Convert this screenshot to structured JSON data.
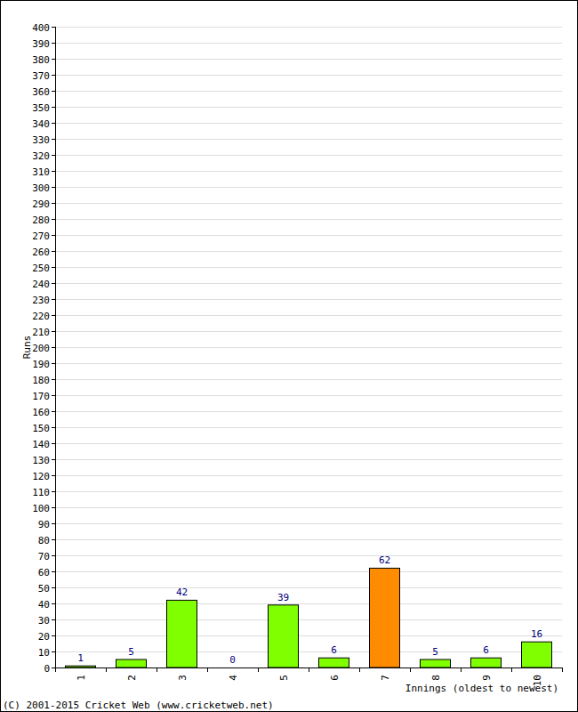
{
  "chart_data": {
    "type": "bar",
    "y_label": "Runs",
    "x_label": "Innings (oldest to newest)",
    "annotations": [
      "(C) 2001-2015 Cricket Web (www.cricketweb.net)"
    ],
    "categories": [
      "1",
      "2",
      "3",
      "4",
      "5",
      "6",
      "7",
      "8",
      "9",
      "10"
    ],
    "values": [
      1,
      5,
      42,
      0,
      39,
      6,
      62,
      5,
      6,
      16
    ],
    "colors": [
      "#80ff00",
      "#80ff00",
      "#80ff00",
      "#80ff00",
      "#80ff00",
      "#80ff00",
      "#ff8c00",
      "#80ff00",
      "#80ff00",
      "#80ff00"
    ],
    "ylim": [
      0,
      400
    ],
    "yticks": [
      0,
      10,
      20,
      30,
      40,
      50,
      60,
      70,
      80,
      90,
      100,
      110,
      120,
      130,
      140,
      150,
      160,
      170,
      180,
      190,
      200,
      210,
      220,
      230,
      240,
      250,
      260,
      270,
      280,
      290,
      300,
      310,
      320,
      330,
      340,
      350,
      360,
      370,
      380,
      390,
      400
    ],
    "grid": true,
    "data_labels": true
  }
}
